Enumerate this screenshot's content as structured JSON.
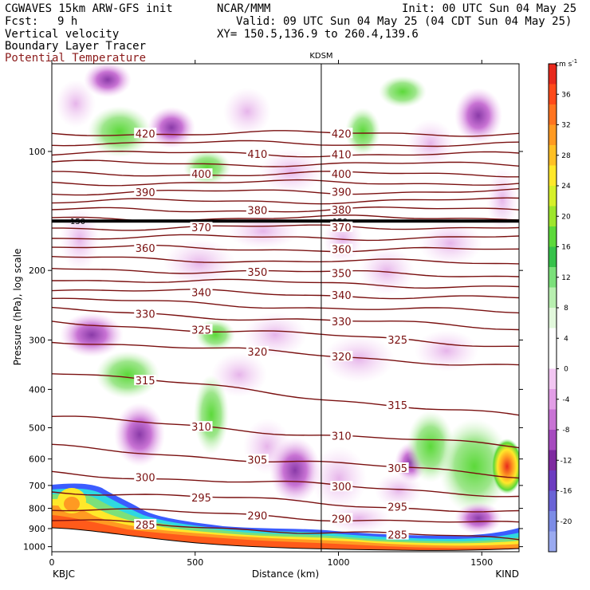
{
  "header": {
    "model": "CGWAVES 15km ARW-GFS init",
    "org": "NCAR/MMM",
    "init": "Init: 00 UTC Sun 04 May 25",
    "fcst_label": "Fcst:",
    "fcst_value": "9 h",
    "valid": "Valid: 09 UTC Sun 04 May 25 (04 CDT Sun 04 May 25)",
    "field1": "Vertical velocity",
    "field2": "Boundary Layer Tracer",
    "field3": "Potential Temperature",
    "xy": "XY= 150.5,136.9 to 260.4,139.6"
  },
  "chart_data": {
    "type": "heatmap",
    "title": "",
    "xlabel": "Distance (km)",
    "ylabel": "Pressure (hPa), log scale",
    "x_ticks": [
      "0",
      "500",
      "1000",
      "1500"
    ],
    "x_tick_values": [
      0,
      500,
      1000,
      1500
    ],
    "xlim": [
      0,
      1630
    ],
    "y_ticks": [
      "100",
      "200",
      "300",
      "400",
      "500",
      "600",
      "700",
      "800",
      "900",
      "1000"
    ],
    "y_tick_values": [
      100,
      200,
      300,
      400,
      500,
      600,
      700,
      800,
      900,
      1000
    ],
    "ylog": true,
    "left_station": "KBJC",
    "right_station": "KIND",
    "mid_station": "KDSM",
    "mid_station_km": 940,
    "colorbar": {
      "unit": "cm s",
      "unit_sup": "-1",
      "ticks": [
        "36",
        "32",
        "28",
        "24",
        "20",
        "16",
        "12",
        "8",
        "4",
        "0",
        "-4",
        "-8",
        "-12",
        "-16",
        "-20"
      ],
      "colors": [
        "#e8291c",
        "#ff4a1a",
        "#ff7420",
        "#ff9a22",
        "#ffc025",
        "#ffe82a",
        "#d6f02a",
        "#9ee62c",
        "#5cd93a",
        "#36c24a",
        "#7be07a",
        "#b8efb0",
        "#e2f8dc",
        "#ffffff",
        "#ffffff",
        "#f2c6f2",
        "#e29ee6",
        "#c873d4",
        "#a64bbf",
        "#7e2aa0",
        "#6c3cc0",
        "#6a63d6",
        "#7c8ce6",
        "#9aaaf0"
      ]
    },
    "theta_levels": [
      {
        "theta": 420,
        "p_left": 90,
        "p_right": 90
      },
      {
        "theta": 415,
        "p_left": 95,
        "p_right": 96
      },
      {
        "theta": 410,
        "p_left": 101,
        "p_right": 102
      },
      {
        "theta": 405,
        "p_left": 107,
        "p_right": 108
      },
      {
        "theta": 400,
        "p_left": 114,
        "p_right": 114
      },
      {
        "theta": 395,
        "p_left": 120,
        "p_right": 120
      },
      {
        "theta": 390,
        "p_left": 127,
        "p_right": 126
      },
      {
        "theta": 385,
        "p_left": 134,
        "p_right": 133
      },
      {
        "theta": 380,
        "p_left": 141,
        "p_right": 140
      },
      {
        "theta": 375,
        "p_left": 148,
        "p_right": 147
      },
      {
        "theta": 370,
        "p_left": 156,
        "p_right": 155
      },
      {
        "theta": 365,
        "p_left": 165,
        "p_right": 165
      },
      {
        "theta": 360,
        "p_left": 175,
        "p_right": 178
      },
      {
        "theta": 355,
        "p_left": 186,
        "p_right": 192
      },
      {
        "theta": 350,
        "p_left": 198,
        "p_right": 206
      },
      {
        "theta": 345,
        "p_left": 210,
        "p_right": 220
      },
      {
        "theta": 340,
        "p_left": 223,
        "p_right": 236
      },
      {
        "theta": 335,
        "p_left": 237,
        "p_right": 256
      },
      {
        "theta": 330,
        "p_left": 252,
        "p_right": 280
      },
      {
        "theta": 325,
        "p_left": 270,
        "p_right": 310
      },
      {
        "theta": 320,
        "p_left": 300,
        "p_right": 350
      },
      {
        "theta": 315,
        "p_left": 360,
        "p_right": 470
      },
      {
        "theta": 310,
        "p_left": 470,
        "p_right": 560
      },
      {
        "theta": 305,
        "p_left": 560,
        "p_right": 660
      },
      {
        "theta": 300,
        "p_left": 650,
        "p_right": 740
      },
      {
        "theta": 295,
        "p_left": 720,
        "p_right": 820
      },
      {
        "theta": 290,
        "p_left": 800,
        "p_right": 880
      },
      {
        "theta": 285,
        "p_left": 860,
        "p_right": 960
      }
    ],
    "tropopause_label": "150",
    "tropopause_p": 150
  }
}
